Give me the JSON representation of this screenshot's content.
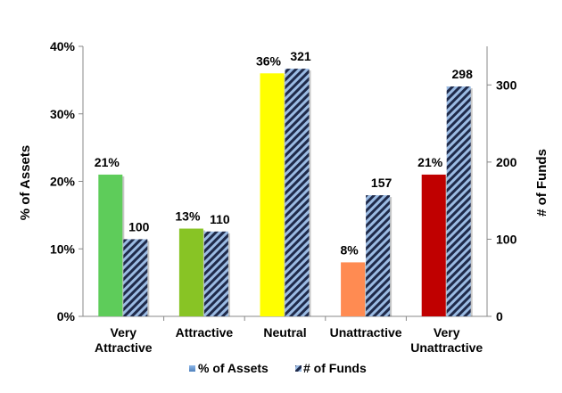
{
  "chart_data": {
    "type": "bar",
    "categories": [
      [
        "Very",
        "Attractive"
      ],
      [
        "Attractive"
      ],
      [
        "Neutral"
      ],
      [
        "Unattractive"
      ],
      [
        "Very",
        "Unattractive"
      ]
    ],
    "series": [
      {
        "name": "% of Assets",
        "axis": "left",
        "values": [
          21,
          13,
          36,
          8,
          21
        ],
        "data_labels": [
          "21%",
          "13%",
          "36%",
          "8%",
          "21%"
        ],
        "colors": [
          "#5ECC5A",
          "#88C425",
          "#FFFF00",
          "#FF8B52",
          "#C00000"
        ]
      },
      {
        "name": "# of Funds",
        "axis": "right",
        "values": [
          100,
          110,
          321,
          157,
          298
        ],
        "data_labels": [
          "100",
          "110",
          "321",
          "157",
          "298"
        ],
        "pattern": "hatched navy/light-blue diagonal stripes"
      }
    ],
    "ylabel": "% of Assets",
    "y2label": "# of Funds",
    "ylim": [
      0,
      40
    ],
    "y2lim": [
      0,
      350
    ],
    "yticks": [
      "0%",
      "10%",
      "20%",
      "30%",
      "40%"
    ],
    "y2ticks": [
      "0",
      "100",
      "200",
      "300"
    ],
    "legend": [
      "% of Assets",
      "# of Funds"
    ],
    "legend_position": "bottom",
    "grid": false
  }
}
